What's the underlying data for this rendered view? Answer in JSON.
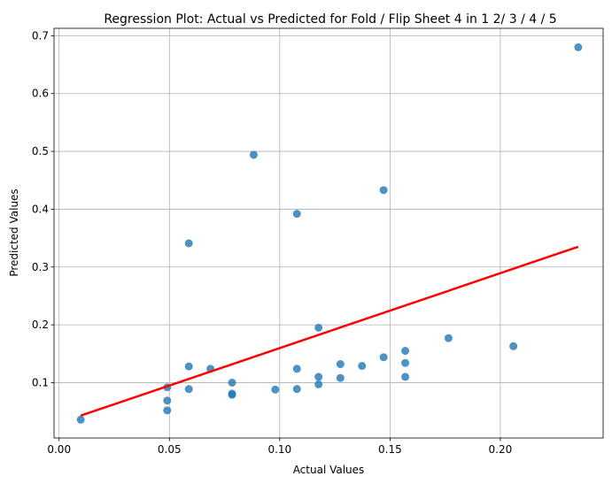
{
  "chart_data": {
    "type": "scatter",
    "title": "Regression Plot: Actual vs Predicted for Fold / Flip Sheet 4 in 1 2/ 3 / 4 / 5",
    "xlabel": "Actual Values",
    "ylabel": "Predicted Values",
    "xlim": [
      -0.0023,
      0.2466
    ],
    "ylim": [
      0.0043,
      0.7128
    ],
    "xticks": [
      0.0,
      0.05,
      0.1,
      0.15,
      0.2
    ],
    "xtick_labels": [
      "0.00",
      "0.05",
      "0.10",
      "0.15",
      "0.20"
    ],
    "yticks": [
      0.1,
      0.2,
      0.3,
      0.4,
      0.5,
      0.6,
      0.7
    ],
    "ytick_labels": [
      "0.1",
      "0.2",
      "0.3",
      "0.4",
      "0.5",
      "0.6",
      "0.7"
    ],
    "grid": true,
    "point_color": "#1f77b4",
    "line_color": "#ff0000",
    "points": [
      {
        "x": 0.0098,
        "y": 0.036
      },
      {
        "x": 0.049,
        "y": 0.052
      },
      {
        "x": 0.049,
        "y": 0.069
      },
      {
        "x": 0.049,
        "y": 0.092
      },
      {
        "x": 0.0588,
        "y": 0.089
      },
      {
        "x": 0.0588,
        "y": 0.128
      },
      {
        "x": 0.0588,
        "y": 0.341
      },
      {
        "x": 0.0686,
        "y": 0.124
      },
      {
        "x": 0.0784,
        "y": 0.079
      },
      {
        "x": 0.0784,
        "y": 0.081
      },
      {
        "x": 0.0784,
        "y": 0.1
      },
      {
        "x": 0.0882,
        "y": 0.494
      },
      {
        "x": 0.098,
        "y": 0.088
      },
      {
        "x": 0.1078,
        "y": 0.089
      },
      {
        "x": 0.1078,
        "y": 0.124
      },
      {
        "x": 0.1078,
        "y": 0.392
      },
      {
        "x": 0.1176,
        "y": 0.097
      },
      {
        "x": 0.1176,
        "y": 0.11
      },
      {
        "x": 0.1176,
        "y": 0.195
      },
      {
        "x": 0.1275,
        "y": 0.108
      },
      {
        "x": 0.1275,
        "y": 0.132
      },
      {
        "x": 0.1373,
        "y": 0.129
      },
      {
        "x": 0.1471,
        "y": 0.144
      },
      {
        "x": 0.1471,
        "y": 0.433
      },
      {
        "x": 0.1569,
        "y": 0.11
      },
      {
        "x": 0.1569,
        "y": 0.134
      },
      {
        "x": 0.1569,
        "y": 0.155
      },
      {
        "x": 0.1765,
        "y": 0.177
      },
      {
        "x": 0.2059,
        "y": 0.163
      },
      {
        "x": 0.2353,
        "y": 0.68
      }
    ],
    "regression_line": {
      "x": [
        0.0098,
        0.2353
      ],
      "y": [
        0.043,
        0.335
      ]
    }
  }
}
